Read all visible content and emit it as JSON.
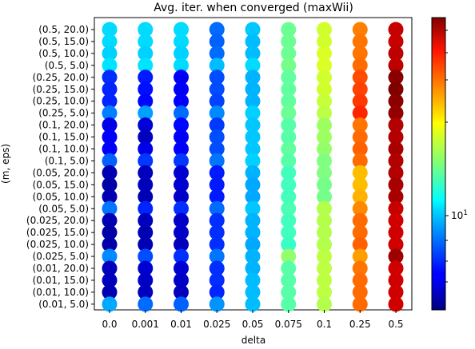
{
  "chart_data": {
    "type": "scatter",
    "title": "Avg. iter. when converged (maxWii)",
    "xlabel": "delta",
    "ylabel": "(m, eps)",
    "x_categories": [
      "0.0",
      "0.001",
      "0.01",
      "0.025",
      "0.05",
      "0.075",
      "0.1",
      "0.25",
      "0.5"
    ],
    "y_categories": [
      "(0.5, 20.0)",
      "(0.5, 15.0)",
      "(0.5, 10.0)",
      "(0.5, 5.0)",
      "(0.25, 20.0)",
      "(0.25, 15.0)",
      "(0.25, 10.0)",
      "(0.25, 5.0)",
      "(0.1, 20.0)",
      "(0.1, 15.0)",
      "(0.1, 10.0)",
      "(0.1, 5.0)",
      "(0.05, 20.0)",
      "(0.05, 15.0)",
      "(0.05, 10.0)",
      "(0.05, 5.0)",
      "(0.025, 20.0)",
      "(0.025, 15.0)",
      "(0.025, 10.0)",
      "(0.025, 5.0)",
      "(0.01, 20.0)",
      "(0.01, 15.0)",
      "(0.01, 10.0)",
      "(0.01, 5.0)"
    ],
    "color_scale": "log",
    "colormap": "jet",
    "colorbar_ticks": [
      "10^1"
    ],
    "color_fraction_grid": [
      [
        0.34,
        0.34,
        0.34,
        0.23,
        0.32,
        0.48,
        0.58,
        0.75,
        0.93
      ],
      [
        0.34,
        0.34,
        0.34,
        0.22,
        0.31,
        0.48,
        0.58,
        0.76,
        0.93
      ],
      [
        0.33,
        0.33,
        0.33,
        0.23,
        0.31,
        0.48,
        0.59,
        0.76,
        0.94
      ],
      [
        0.35,
        0.35,
        0.34,
        0.31,
        0.34,
        0.49,
        0.59,
        0.77,
        0.94
      ],
      [
        0.17,
        0.15,
        0.12,
        0.2,
        0.3,
        0.47,
        0.58,
        0.8,
        0.99
      ],
      [
        0.16,
        0.14,
        0.12,
        0.2,
        0.3,
        0.47,
        0.58,
        0.81,
        1.0
      ],
      [
        0.16,
        0.13,
        0.12,
        0.19,
        0.3,
        0.47,
        0.57,
        0.82,
        0.99
      ],
      [
        0.25,
        0.28,
        0.23,
        0.26,
        0.33,
        0.48,
        0.56,
        0.84,
        0.98
      ],
      [
        0.1,
        0.09,
        0.13,
        0.18,
        0.32,
        0.46,
        0.53,
        0.76,
        0.95
      ],
      [
        0.12,
        0.06,
        0.12,
        0.2,
        0.32,
        0.46,
        0.53,
        0.77,
        0.95
      ],
      [
        0.12,
        0.1,
        0.12,
        0.2,
        0.32,
        0.47,
        0.52,
        0.78,
        0.96
      ],
      [
        0.22,
        0.18,
        0.18,
        0.24,
        0.33,
        0.46,
        0.5,
        0.77,
        0.95
      ],
      [
        0.05,
        0.06,
        0.08,
        0.15,
        0.3,
        0.44,
        0.5,
        0.69,
        0.95
      ],
      [
        0.04,
        0.06,
        0.08,
        0.15,
        0.29,
        0.44,
        0.49,
        0.69,
        0.96
      ],
      [
        0.05,
        0.05,
        0.07,
        0.15,
        0.29,
        0.44,
        0.49,
        0.7,
        0.96
      ],
      [
        0.24,
        0.16,
        0.17,
        0.23,
        0.32,
        0.45,
        0.55,
        0.74,
        0.93
      ],
      [
        0.05,
        0.06,
        0.07,
        0.17,
        0.3,
        0.44,
        0.55,
        0.77,
        0.92
      ],
      [
        0.04,
        0.05,
        0.07,
        0.17,
        0.3,
        0.44,
        0.55,
        0.77,
        0.92
      ],
      [
        0.04,
        0.05,
        0.06,
        0.17,
        0.29,
        0.43,
        0.55,
        0.78,
        0.92
      ],
      [
        0.26,
        0.2,
        0.17,
        0.24,
        0.3,
        0.52,
        0.56,
        0.72,
        0.97
      ],
      [
        0.06,
        0.08,
        0.08,
        0.17,
        0.3,
        0.46,
        0.56,
        0.76,
        0.92
      ],
      [
        0.06,
        0.07,
        0.07,
        0.17,
        0.31,
        0.46,
        0.56,
        0.77,
        0.92
      ],
      [
        0.05,
        0.06,
        0.06,
        0.16,
        0.31,
        0.46,
        0.56,
        0.77,
        0.92
      ],
      [
        0.29,
        0.23,
        0.22,
        0.27,
        0.31,
        0.46,
        0.55,
        0.77,
        0.92
      ]
    ],
    "grid": false,
    "legend": "none",
    "colorbar": "right"
  }
}
